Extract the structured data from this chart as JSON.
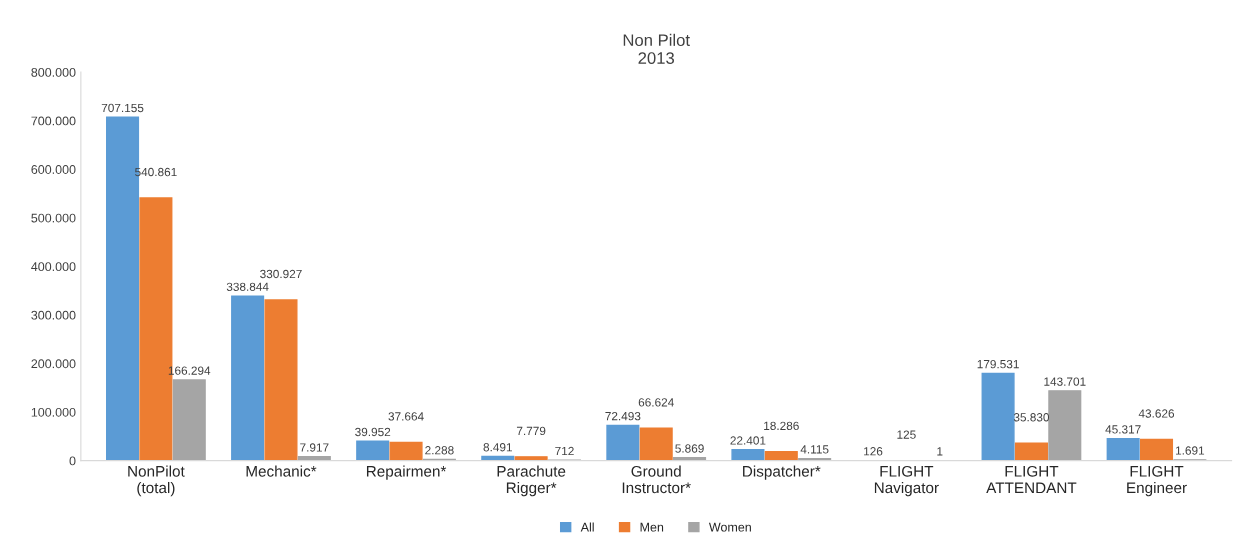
{
  "chart_data": {
    "type": "bar",
    "title": "Non Pilot\n2013",
    "categories": [
      "NonPilot\n(total)",
      "Mechanic*",
      "Repairmen*",
      "Parachute\nRigger*",
      "Ground\nInstructor*",
      "Dispatcher*",
      "FLIGHT\nNavigator",
      "FLIGHT\nATTENDANT",
      "FLIGHT\nEngineer"
    ],
    "series": [
      {
        "name": "All",
        "color": "#5b9bd5",
        "values": [
          707155,
          338844,
          39952,
          8491,
          72493,
          22401,
          126,
          179531,
          45317
        ],
        "value_labels": [
          "707.155",
          "338.844",
          "39.952",
          "8.491",
          "72.493",
          "22.401",
          "126",
          "179.531",
          "45.317"
        ]
      },
      {
        "name": "Men",
        "color": "#ed7d31",
        "values": [
          540861,
          330927,
          37664,
          7779,
          66624,
          18286,
          125,
          35830,
          43626
        ],
        "value_labels": [
          "540.861",
          "330.927",
          "37.664",
          "7.779",
          "66.624",
          "18.286",
          "125",
          "35.830",
          "43.626"
        ]
      },
      {
        "name": "Women",
        "color": "#a5a5a5",
        "values": [
          166294,
          7917,
          2288,
          712,
          5869,
          4115,
          1,
          143701,
          1691
        ],
        "value_labels": [
          "166.294",
          "7.917",
          "2.288",
          "712",
          "5.869",
          "4.115",
          "1",
          "143.701",
          "1.691"
        ]
      }
    ],
    "ylim": [
      0,
      800000
    ],
    "yticks": [
      0,
      {
        "value": 100000,
        "label": "100.000"
      },
      {
        "value": 200000,
        "label": "200.000"
      },
      {
        "value": 300000,
        "label": "300.000"
      },
      {
        "value": 400000,
        "label": "400.000"
      },
      {
        "value": 500000,
        "label": "500.000"
      },
      {
        "value": 600000,
        "label": "600.000"
      },
      {
        "value": 700000,
        "label": "700.000"
      },
      {
        "value": 800000,
        "label": "800.000"
      }
    ],
    "grid": false,
    "legend": "bottom"
  }
}
